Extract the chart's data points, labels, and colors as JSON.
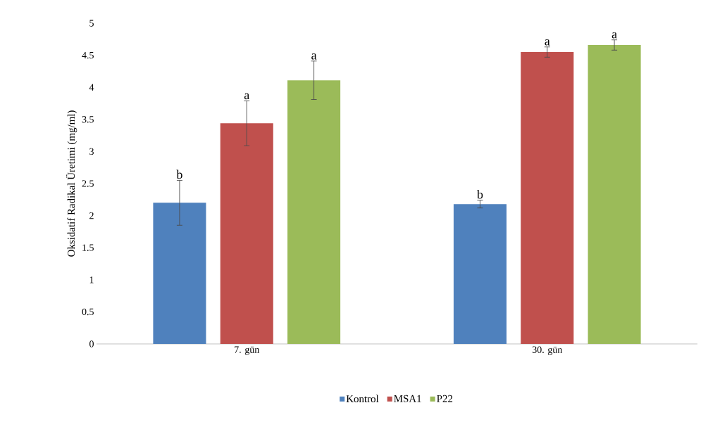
{
  "chart_data": {
    "type": "bar",
    "ylabel": "Oksidatif Radikal Üretimi (mg/ml)",
    "categories": [
      "7. gün",
      "30. gün"
    ],
    "series": [
      {
        "name": "Kontrol",
        "color": "#4f81bd",
        "values": [
          2.2,
          2.18
        ],
        "errors": [
          0.35,
          0.06
        ]
      },
      {
        "name": "MSA1",
        "color": "#c0504d",
        "values": [
          3.44,
          4.55
        ],
        "errors": [
          0.35,
          0.08
        ]
      },
      {
        "name": "P22",
        "color": "#9bbb59",
        "values": [
          4.11,
          4.66
        ],
        "errors": [
          0.3,
          0.08
        ]
      }
    ],
    "ylim": [
      0,
      5
    ],
    "yticks": [
      0,
      0.5,
      1,
      1.5,
      2,
      2.5,
      3,
      3.5,
      4,
      4.5,
      5
    ],
    "grid": false,
    "legend": "bottom",
    "annotations": [
      "b",
      "a",
      "a",
      "b",
      "a",
      "a"
    ]
  }
}
